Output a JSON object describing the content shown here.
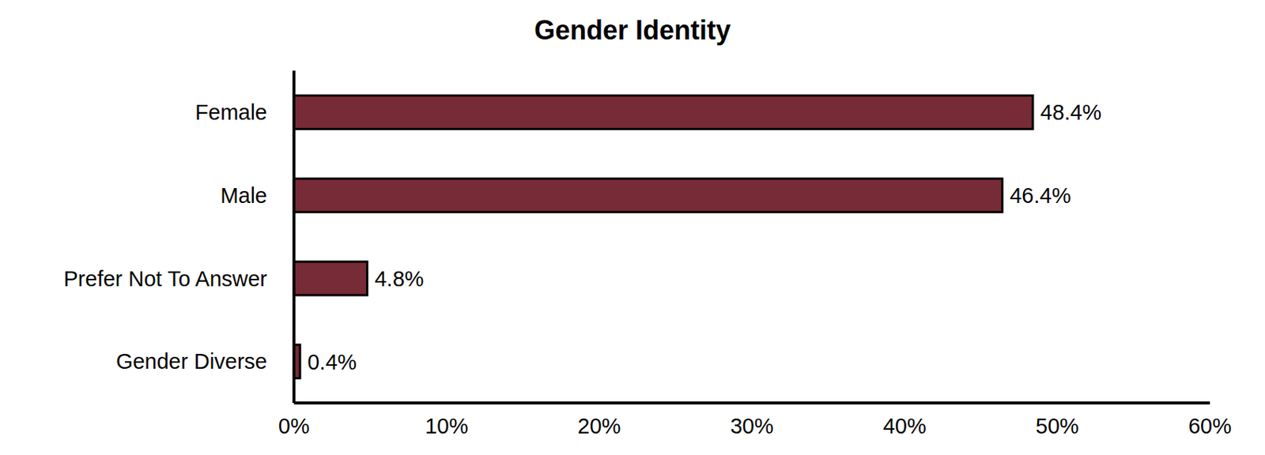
{
  "chart_data": {
    "type": "bar",
    "title": "Gender Identity",
    "orientation": "horizontal",
    "categories": [
      "Female",
      "Male",
      "Prefer Not To Answer",
      "Gender Diverse"
    ],
    "values": [
      48.4,
      46.4,
      4.8,
      0.4
    ],
    "value_labels": [
      "48.4%",
      "46.4%",
      "4.8%",
      "0.4%"
    ],
    "data_labels": true,
    "color": "#772b36",
    "xlim": [
      0,
      60
    ],
    "xticks": [
      {
        "value": 0,
        "label": "0%"
      },
      {
        "value": 10,
        "label": "10%"
      },
      {
        "value": 20,
        "label": "20%"
      },
      {
        "value": 30,
        "label": "30%"
      },
      {
        "value": 40,
        "label": "40%"
      },
      {
        "value": 50,
        "label": "50%"
      },
      {
        "value": 60,
        "label": "60%"
      }
    ],
    "grid": false
  }
}
